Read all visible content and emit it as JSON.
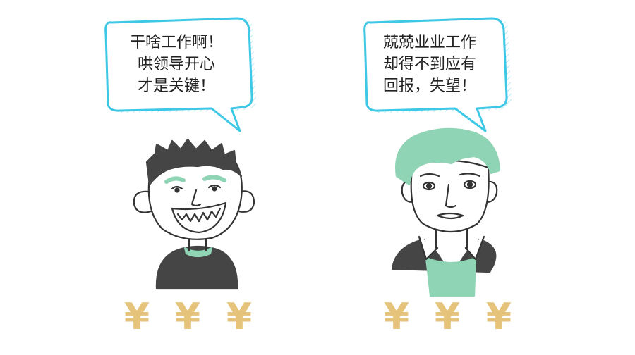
{
  "left_speech": {
    "lines": [
      "干啥工作啊！",
      "哄领导开心",
      "才是关键！"
    ]
  },
  "right_speech": {
    "lines": [
      "兢兢业业工作",
      "却得不到应有",
      "回报，失望！"
    ]
  },
  "currency_symbol": "¥",
  "colors": {
    "bubble_outline": "#3ec8e6",
    "hair_dark": "#454545",
    "hair_mint": "#8fd4b4",
    "shirt_mint": "#8fd4b4",
    "yen_gold": "#e6c37a",
    "line": "#333333"
  }
}
